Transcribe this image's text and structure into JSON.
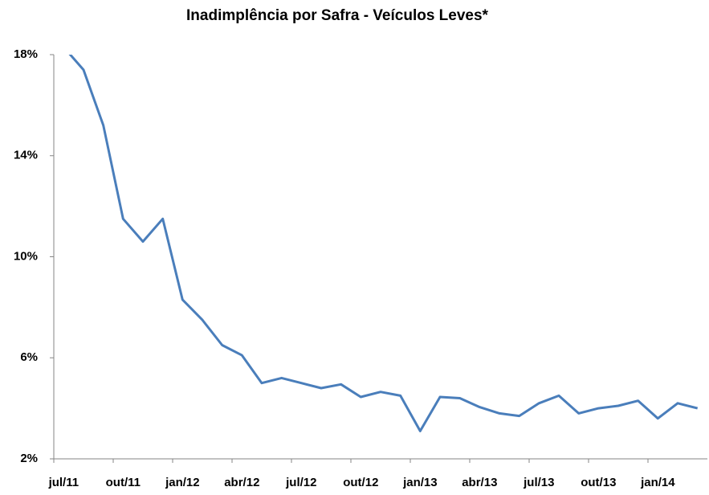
{
  "chart_data": {
    "type": "line",
    "title": "Inadimplência por Safra - Veículos Leves*",
    "categories": [
      "jul/11",
      null,
      null,
      "out/11",
      null,
      null,
      "jan/12",
      null,
      null,
      "abr/12",
      null,
      null,
      "jul/12",
      null,
      null,
      "out/12",
      null,
      null,
      "jan/13",
      null,
      null,
      "abr/13",
      null,
      null,
      "jul/13",
      null,
      null,
      "out/13",
      null,
      null,
      "jan/14",
      null,
      null
    ],
    "series": [
      {
        "name": "Inadimplência",
        "color": "#4a7ebb",
        "values": [
          18.3,
          17.4,
          15.2,
          11.5,
          10.6,
          11.5,
          8.3,
          7.5,
          6.5,
          6.1,
          5.0,
          5.2,
          5.0,
          4.8,
          4.95,
          4.45,
          4.65,
          4.5,
          3.1,
          4.45,
          4.4,
          4.05,
          3.8,
          3.7,
          4.2,
          4.5,
          3.8,
          4.0,
          4.1,
          4.3,
          3.6,
          4.2,
          4.0
        ]
      }
    ],
    "ylim": [
      2,
      18
    ],
    "yticks": [
      {
        "value": 2,
        "label": "2%"
      },
      {
        "value": 6,
        "label": "6%"
      },
      {
        "value": 10,
        "label": "10%"
      },
      {
        "value": 14,
        "label": "14%"
      },
      {
        "value": 18,
        "label": "18%"
      }
    ],
    "grid": false
  }
}
